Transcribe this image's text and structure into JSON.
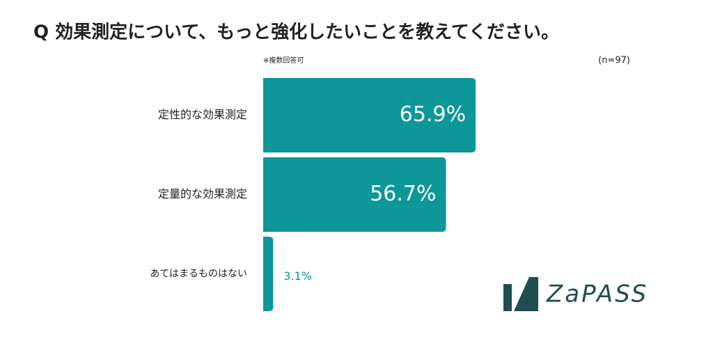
{
  "chart_data": {
    "type": "bar",
    "orientation": "horizontal",
    "title": "Q 効果測定について、もっと強化したいことを教えてください。",
    "note": "※複数回答可",
    "sample": "(n=97)",
    "logo": "ZaPASS",
    "categories": [
      "定性的な効果測定",
      "定量的な効果測定",
      "あてはまるものはない"
    ],
    "values": [
      65.9,
      56.7,
      3.1
    ],
    "value_labels": [
      "65.9%",
      "56.7%",
      "3.1%"
    ],
    "color": "#0e9799"
  }
}
